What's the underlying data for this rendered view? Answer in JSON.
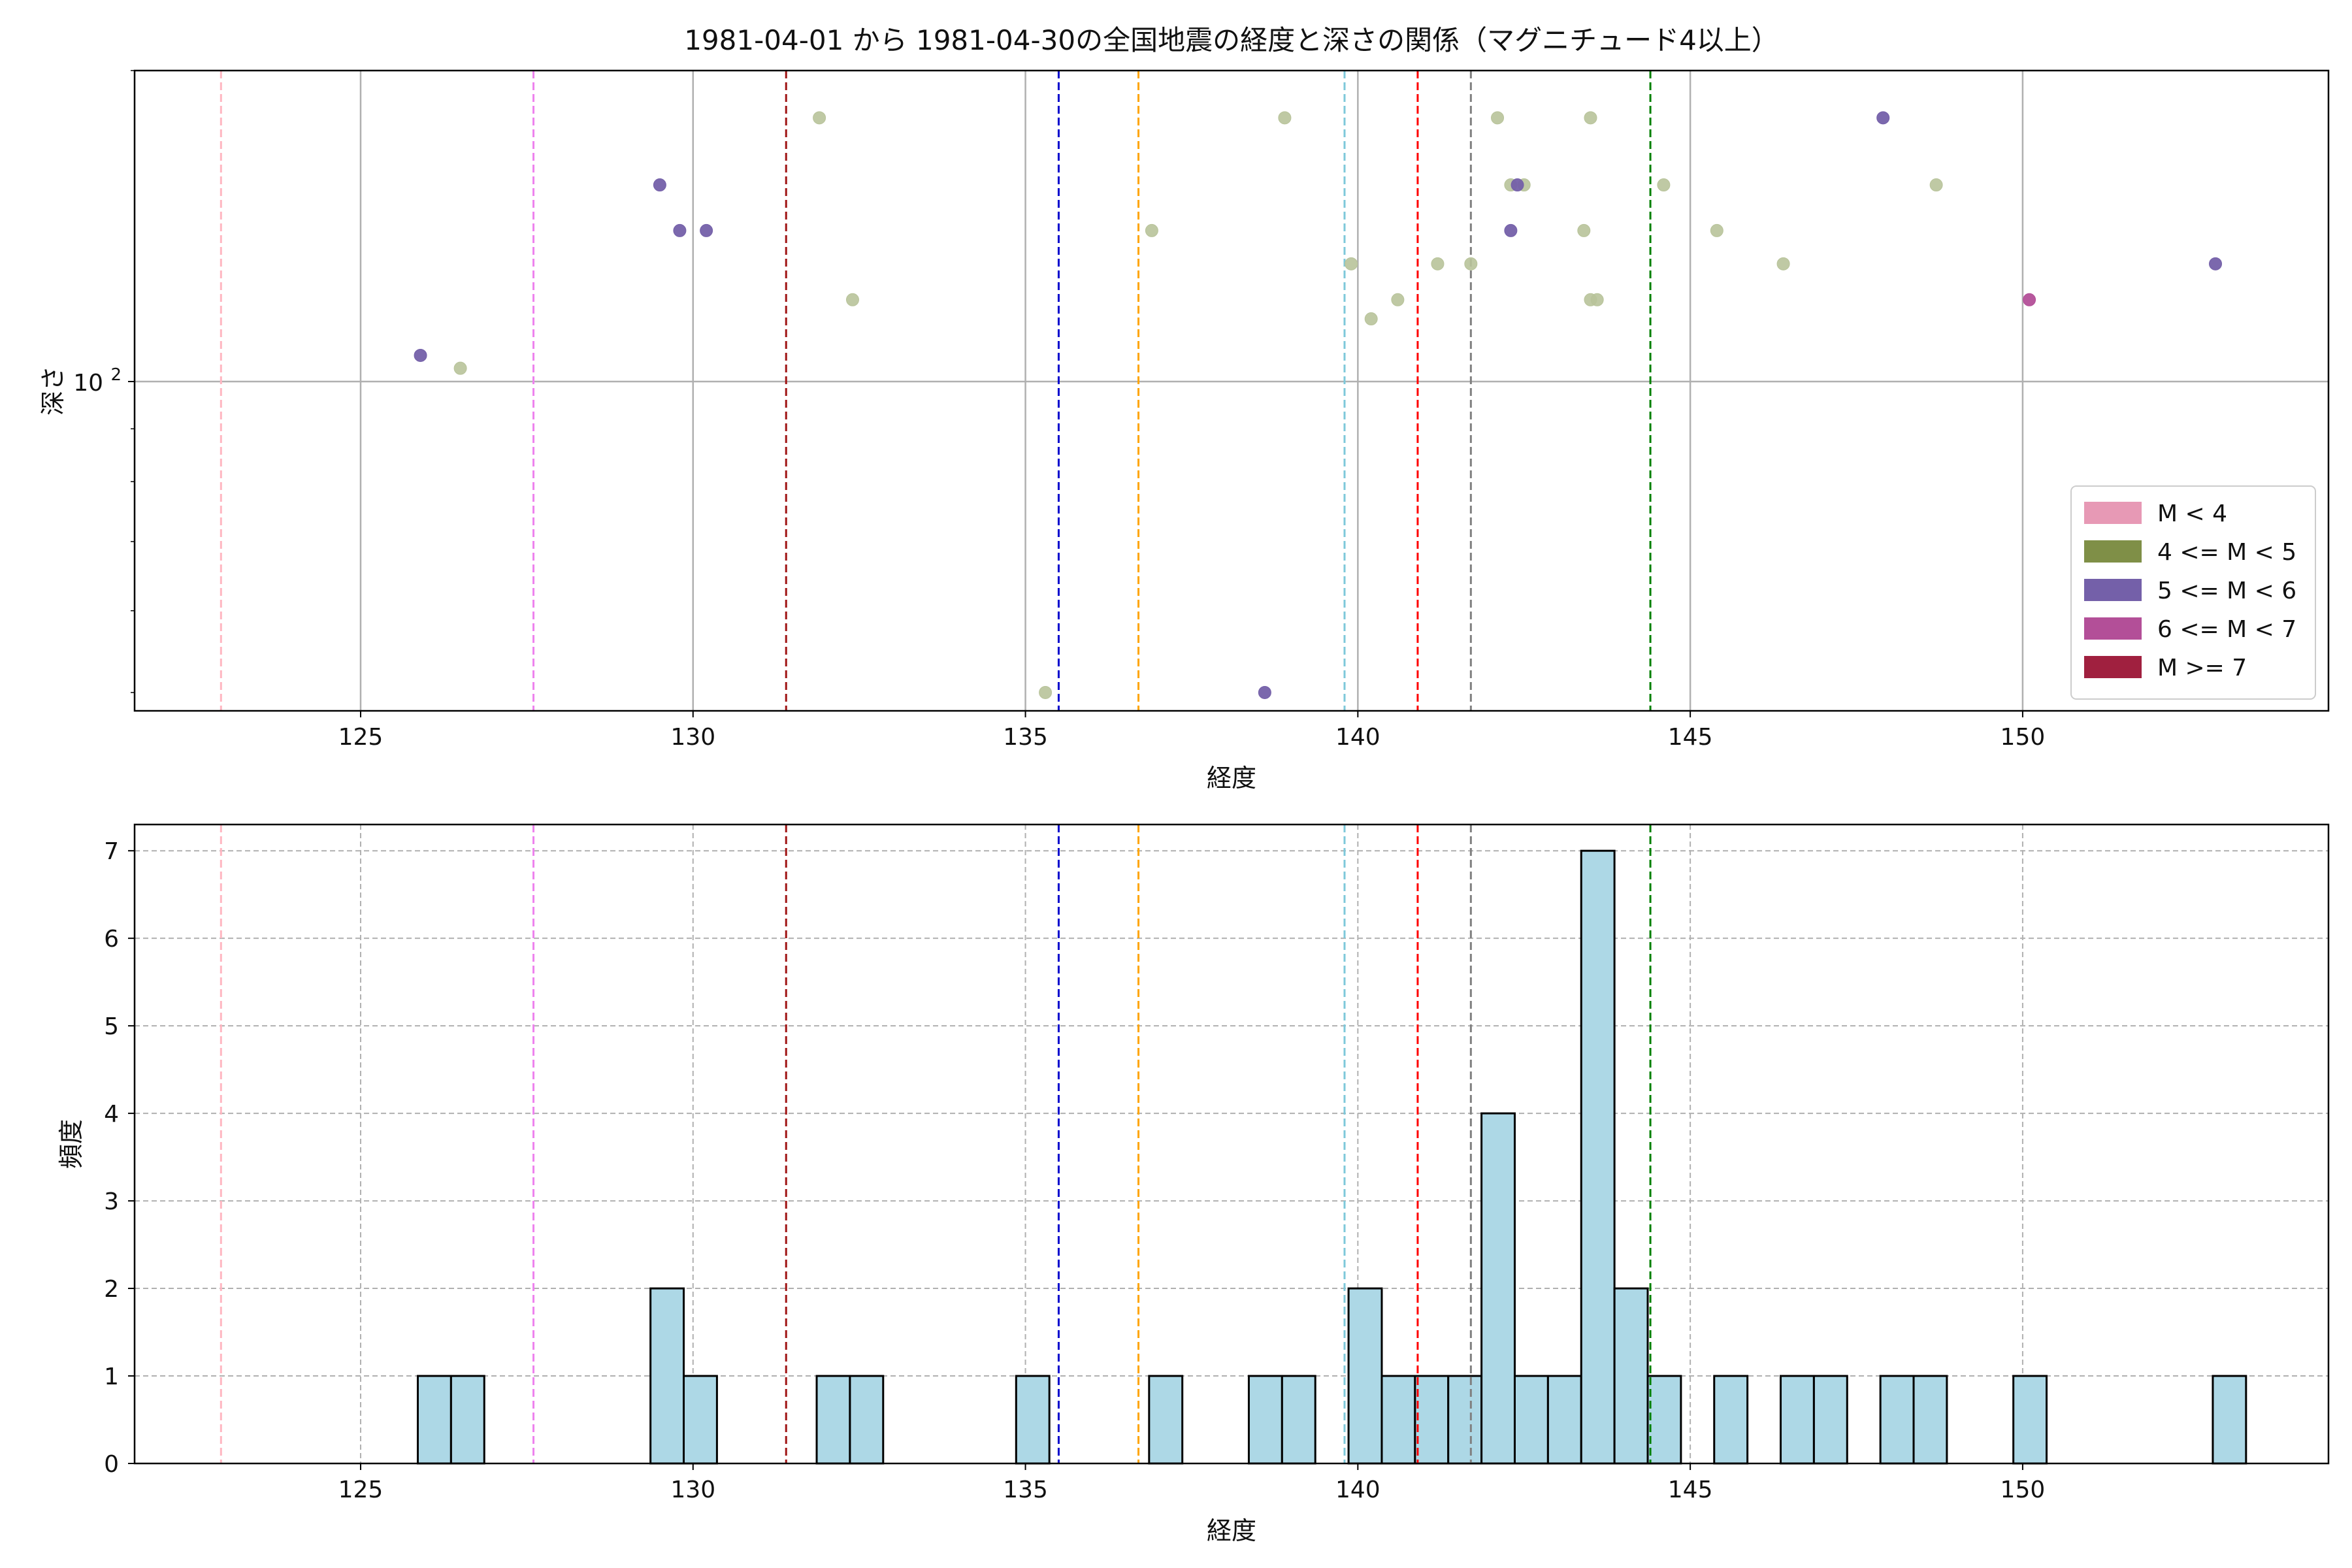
{
  "title": "1981-04-01 から 1981-04-30の全国地震の経度と深さの関係（マグニチュード4以上）",
  "colors": {
    "mag_classes": [
      "#e799b5",
      "#7f8f47",
      "#7460a9",
      "#b34f98",
      "#a0203f"
    ],
    "scatter_fill": {
      "4-5": "#b8c39a",
      "5-6": "#7460a9",
      "6-7": "#b34f98"
    },
    "hist_bar": "#add8e6",
    "hist_edge": "#000000",
    "grid": "#b0b0b0"
  },
  "chart_data": [
    {
      "type": "scatter",
      "xlabel": "経度",
      "ylabel": "深さ",
      "xlim": [
        121.6,
        154.6
      ],
      "yscale": "log",
      "ylim": [
        48,
        200
      ],
      "ytick_labels": [
        {
          "value": 100,
          "base": "10",
          "exp": "2"
        }
      ],
      "xticks": [
        125,
        130,
        135,
        140,
        145,
        150
      ],
      "grid": true,
      "vlines": [
        {
          "x": 122.9,
          "color": "#ffb6c1"
        },
        {
          "x": 127.6,
          "color": "#ee82ee"
        },
        {
          "x": 131.4,
          "color": "#a01515"
        },
        {
          "x": 135.5,
          "color": "#0000cd"
        },
        {
          "x": 136.7,
          "color": "#ffa500"
        },
        {
          "x": 139.8,
          "color": "#7ec8da"
        },
        {
          "x": 140.9,
          "color": "#ff0000"
        },
        {
          "x": 141.7,
          "color": "#808080"
        },
        {
          "x": 144.4,
          "color": "#008000"
        }
      ],
      "legend": {
        "position": "lower right",
        "entries": [
          "M < 4",
          "4 <= M < 5",
          "5 <= M < 6",
          "6 <= M < 7",
          "M >= 7"
        ]
      },
      "series": [
        {
          "class": "4-5",
          "points": [
            [
              126.5,
              103
            ],
            [
              131.9,
              180
            ],
            [
              132.4,
              120
            ],
            [
              135.3,
              50
            ],
            [
              136.9,
              140
            ],
            [
              138.9,
              180
            ],
            [
              139.9,
              130
            ],
            [
              140.2,
              115
            ],
            [
              140.6,
              120
            ],
            [
              141.2,
              130
            ],
            [
              141.7,
              130
            ],
            [
              142.1,
              180
            ],
            [
              142.3,
              155
            ],
            [
              142.5,
              155
            ],
            [
              143.4,
              140
            ],
            [
              143.5,
              120
            ],
            [
              143.6,
              120
            ],
            [
              143.5,
              180
            ],
            [
              144.6,
              155
            ],
            [
              145.4,
              140
            ],
            [
              146.4,
              130
            ],
            [
              148.7,
              155
            ]
          ]
        },
        {
          "class": "5-6",
          "points": [
            [
              125.9,
              106
            ],
            [
              129.5,
              155
            ],
            [
              129.8,
              140
            ],
            [
              130.2,
              140
            ],
            [
              138.6,
              50
            ],
            [
              142.3,
              140
            ],
            [
              142.4,
              155
            ],
            [
              147.9,
              180
            ],
            [
              152.9,
              130
            ]
          ]
        },
        {
          "class": "6-7",
          "points": [
            [
              150.1,
              120
            ]
          ]
        }
      ]
    },
    {
      "type": "bar",
      "xlabel": "経度",
      "ylabel": "頻度",
      "xlim": [
        121.6,
        154.6
      ],
      "ylim": [
        0,
        7.3
      ],
      "yticks": [
        0,
        1,
        2,
        3,
        4,
        5,
        6,
        7
      ],
      "xticks": [
        125,
        130,
        135,
        140,
        145,
        150
      ],
      "grid": true,
      "vlines": [
        {
          "x": 122.9,
          "color": "#ffb6c1"
        },
        {
          "x": 127.6,
          "color": "#ee82ee"
        },
        {
          "x": 131.4,
          "color": "#a01515"
        },
        {
          "x": 135.5,
          "color": "#0000cd"
        },
        {
          "x": 136.7,
          "color": "#ffa500"
        },
        {
          "x": 139.8,
          "color": "#7ec8da"
        },
        {
          "x": 140.9,
          "color": "#ff0000"
        },
        {
          "x": 141.7,
          "color": "#808080"
        },
        {
          "x": 144.4,
          "color": "#008000"
        }
      ],
      "bins": [
        {
          "x0": 125.86,
          "x1": 126.36,
          "count": 1
        },
        {
          "x0": 126.36,
          "x1": 126.86,
          "count": 1
        },
        {
          "x0": 129.36,
          "x1": 129.86,
          "count": 2
        },
        {
          "x0": 129.86,
          "x1": 130.36,
          "count": 1
        },
        {
          "x0": 131.86,
          "x1": 132.36,
          "count": 1
        },
        {
          "x0": 132.36,
          "x1": 132.86,
          "count": 1
        },
        {
          "x0": 134.86,
          "x1": 135.36,
          "count": 1
        },
        {
          "x0": 136.86,
          "x1": 137.36,
          "count": 1
        },
        {
          "x0": 138.36,
          "x1": 138.86,
          "count": 1
        },
        {
          "x0": 138.86,
          "x1": 139.36,
          "count": 1
        },
        {
          "x0": 139.86,
          "x1": 140.36,
          "count": 2
        },
        {
          "x0": 140.36,
          "x1": 140.86,
          "count": 1
        },
        {
          "x0": 140.86,
          "x1": 141.36,
          "count": 1
        },
        {
          "x0": 141.36,
          "x1": 141.86,
          "count": 1
        },
        {
          "x0": 141.86,
          "x1": 142.36,
          "count": 4
        },
        {
          "x0": 142.36,
          "x1": 142.86,
          "count": 1
        },
        {
          "x0": 142.86,
          "x1": 143.36,
          "count": 1
        },
        {
          "x0": 143.36,
          "x1": 143.86,
          "count": 7
        },
        {
          "x0": 143.86,
          "x1": 144.36,
          "count": 2
        },
        {
          "x0": 144.36,
          "x1": 144.86,
          "count": 1
        },
        {
          "x0": 145.36,
          "x1": 145.86,
          "count": 1
        },
        {
          "x0": 146.36,
          "x1": 146.86,
          "count": 1
        },
        {
          "x0": 146.86,
          "x1": 147.36,
          "count": 1
        },
        {
          "x0": 147.86,
          "x1": 148.36,
          "count": 1
        },
        {
          "x0": 148.36,
          "x1": 148.86,
          "count": 1
        },
        {
          "x0": 149.86,
          "x1": 150.36,
          "count": 1
        },
        {
          "x0": 152.86,
          "x1": 153.36,
          "count": 1
        }
      ]
    }
  ]
}
